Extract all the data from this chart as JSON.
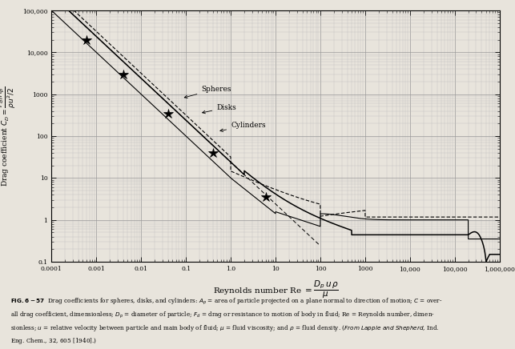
{
  "xlim": [
    0.0001,
    1000000
  ],
  "ylim": [
    0.1,
    100000
  ],
  "xticks": [
    0.0001,
    0.001,
    0.01,
    0.1,
    1.0,
    10,
    100,
    1000,
    10000,
    100000,
    1000000
  ],
  "xlabels": [
    "0.0001",
    "0.001",
    "0.01",
    "0.1",
    "1.0",
    "10",
    "100",
    "1000",
    "10,000",
    "100,000",
    "1,000,000"
  ],
  "yticks": [
    0.1,
    1,
    10,
    100,
    1000,
    10000,
    100000
  ],
  "ylabels": [
    "0.1",
    "1",
    "10",
    "100",
    "1000",
    "10,000",
    "100,000"
  ],
  "star_x": [
    0.0006,
    0.004,
    0.04,
    0.4,
    6.0
  ],
  "star_y": [
    20000,
    3000,
    350,
    40,
    3.5
  ],
  "ann_spheres_x": 0.18,
  "ann_spheres_y": 1100,
  "ann_disks_x": 0.4,
  "ann_disks_y": 330,
  "ann_cyl_x": 0.8,
  "ann_cyl_y": 105,
  "bg_color": "#e8e4dc",
  "grid_major_color": "#999999",
  "grid_minor_color": "#bbbbbb"
}
